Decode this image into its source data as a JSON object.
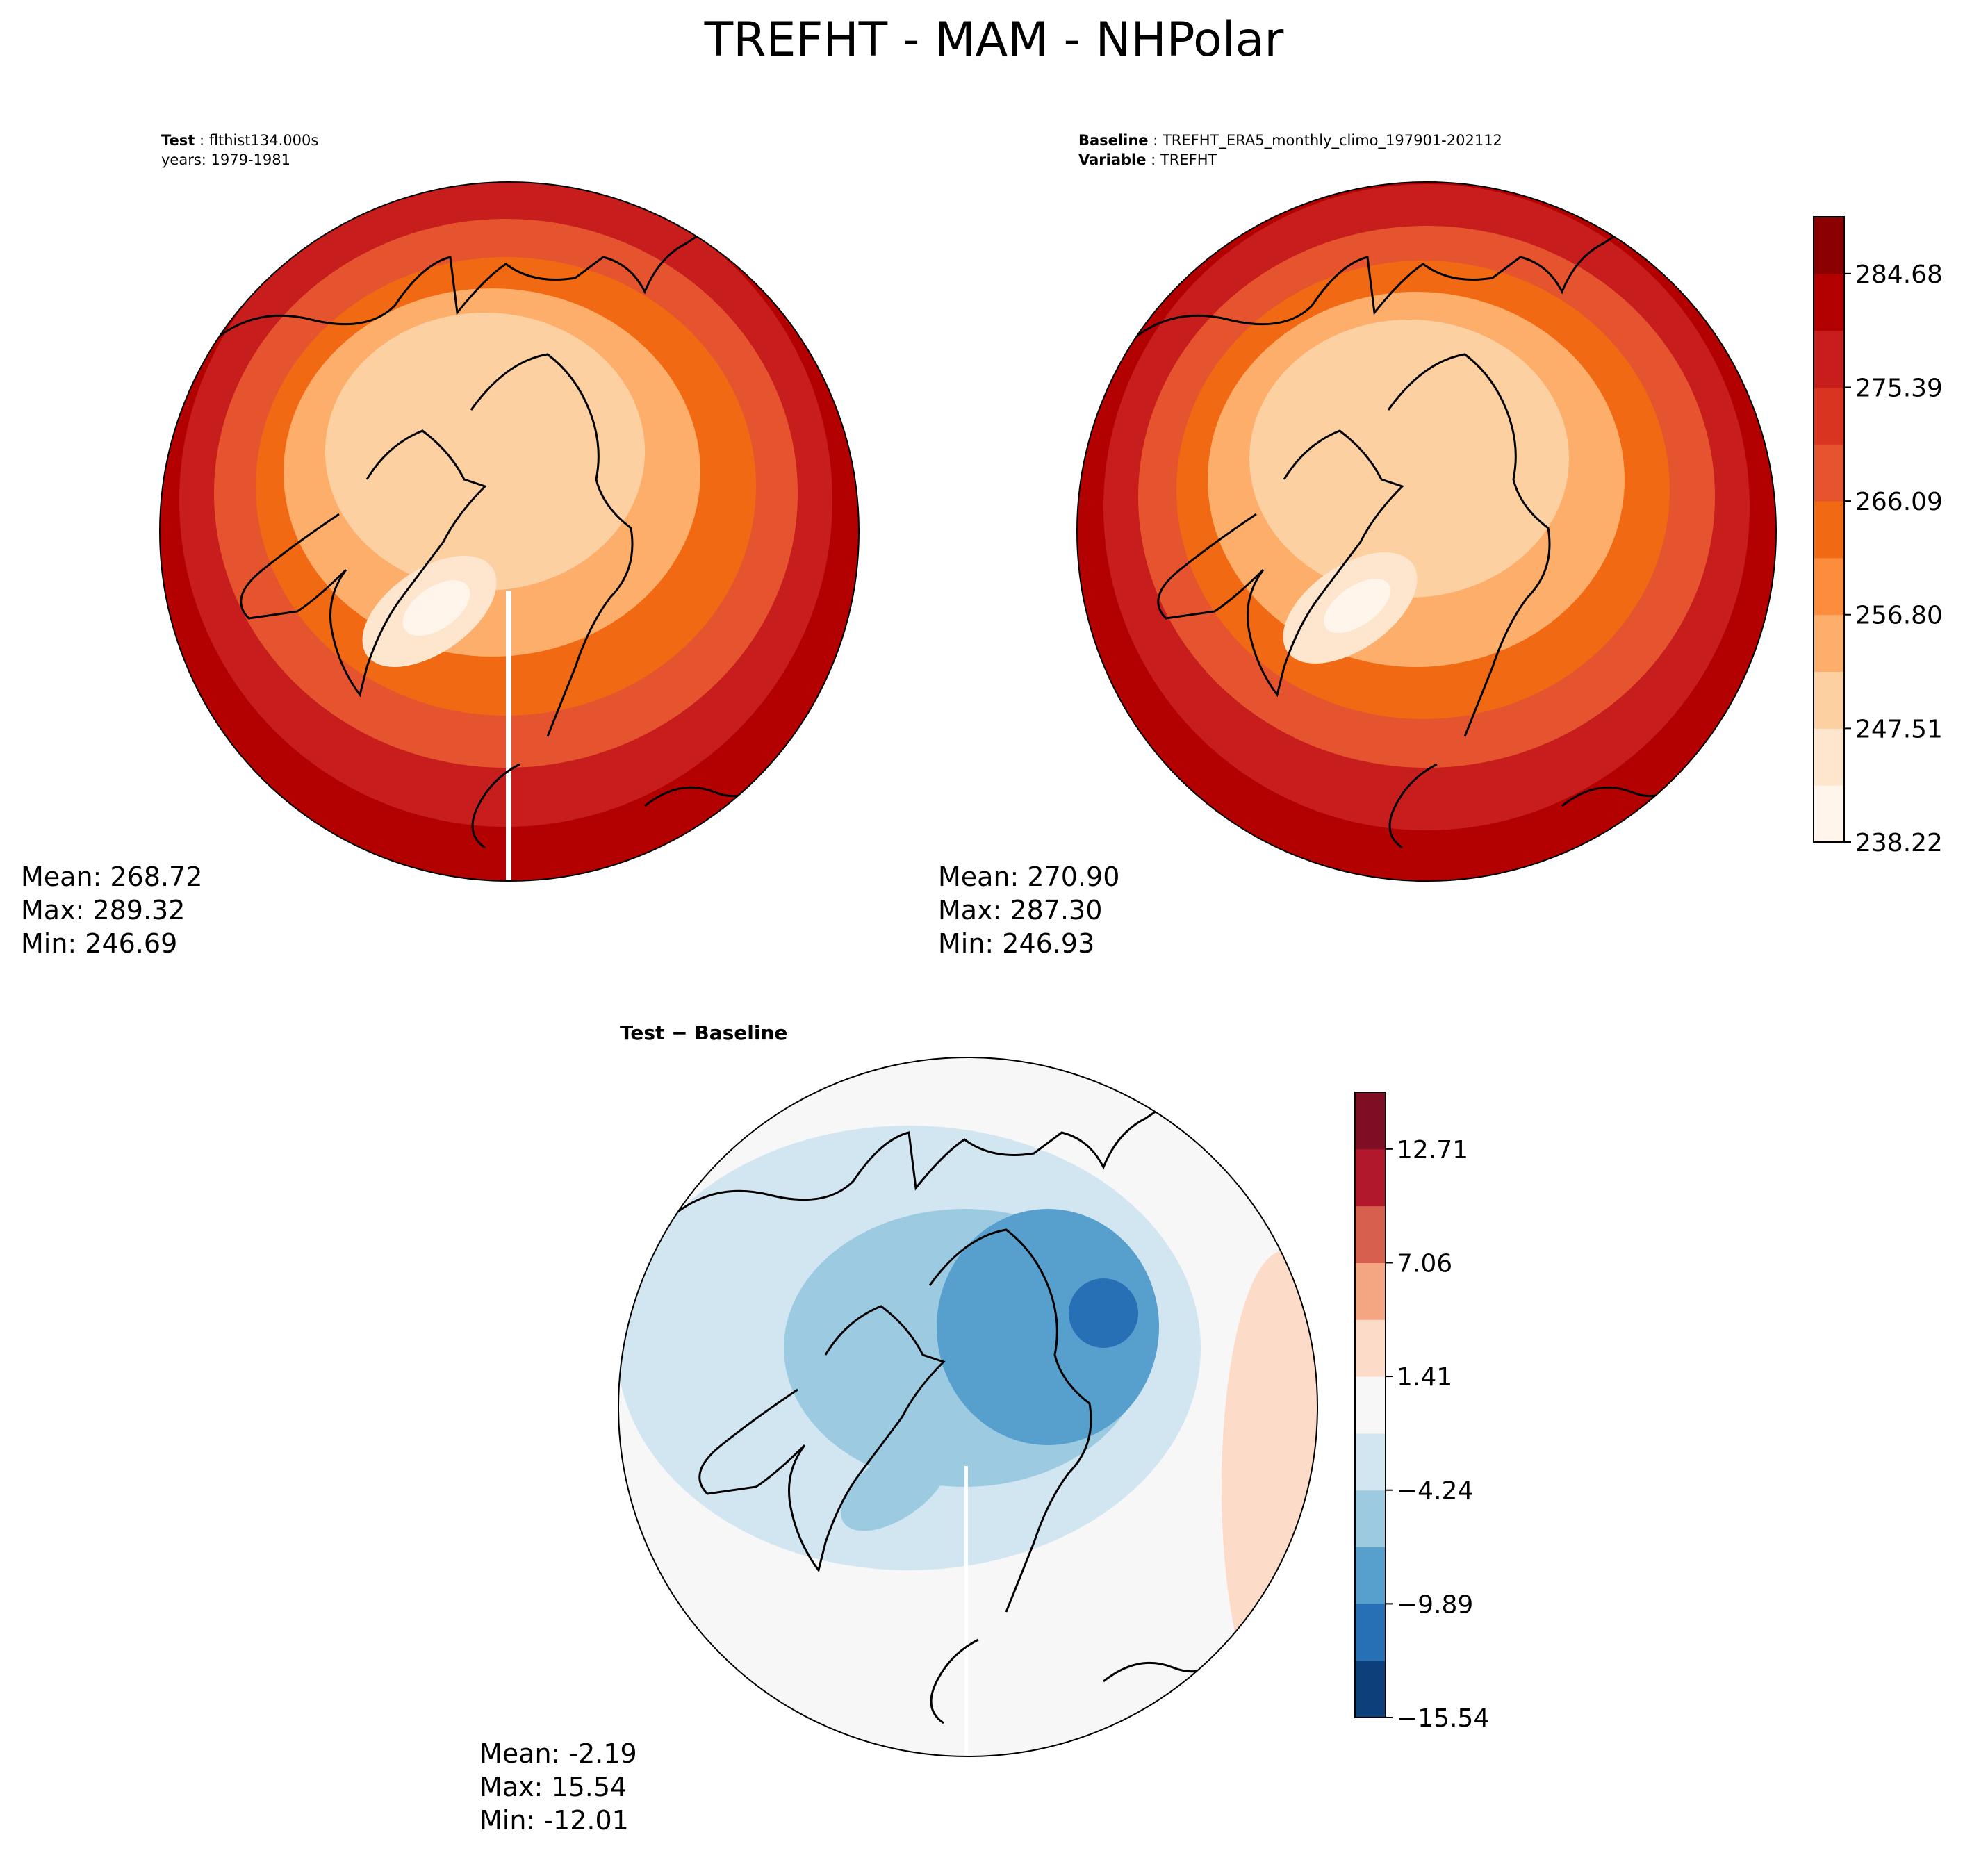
{
  "title": "TREFHT - MAM - NHPolar",
  "test_panel": {
    "label": "Test",
    "name": "flthist134.000s",
    "years": "years: 1979-1981",
    "mean": "Mean: 268.72",
    "max": "Max: 289.32",
    "min": "Min: 246.69"
  },
  "baseline_panel": {
    "label": "Baseline",
    "name": "TREFHT_ERA5_monthly_climo_197901-202112",
    "variable_label": "Variable",
    "variable": "TREFHT",
    "mean": "Mean: 270.90",
    "max": "Max: 287.30",
    "min": "Min: 246.93"
  },
  "diff_panel": {
    "label": "Test − Baseline",
    "mean": "Mean: -2.19",
    "max": "Max: 15.54",
    "min": "Min: -12.01"
  },
  "colorbar_main": {
    "ticks": [
      "238.22",
      "247.51",
      "256.80",
      "266.09",
      "275.39",
      "284.68"
    ],
    "colors": [
      "#fff5eb",
      "#fee6ce",
      "#fdd0a2",
      "#fdae6b",
      "#fd8d3c",
      "#f16913",
      "#e5542f",
      "#d9341f",
      "#c81d1d",
      "#b30000",
      "#8b0000"
    ],
    "colors_note_none": ""
  },
  "colorbar_diff": {
    "ticks": [
      "−15.54",
      "−9.89",
      "−4.24",
      "1.41",
      "7.06",
      "12.71"
    ],
    "colors": [
      "#0d3f7a",
      "#2870b5",
      "#579fcc",
      "#9ccae1",
      "#d2e6f2",
      "#f7f7f7",
      "#fcdbc8",
      "#f4a582",
      "#d6604d",
      "#b2182b",
      "#7f0e25"
    ]
  },
  "map_colors": {
    "main_outer": "#b30000",
    "main_ring1": "#c81d1d",
    "main_ring2": "#e5542f",
    "main_ring3": "#f16913",
    "main_ring4": "#fdae6b",
    "main_center": "#fdd0a2",
    "greenland": "#fee6ce",
    "diff_bg": "#f7f7f7",
    "diff_light": "#d2e6f2",
    "diff_mid": "#9ccae1",
    "diff_dark": "#579fcc",
    "diff_darkest": "#2870b5",
    "diff_warm": "#fcdbc8"
  }
}
